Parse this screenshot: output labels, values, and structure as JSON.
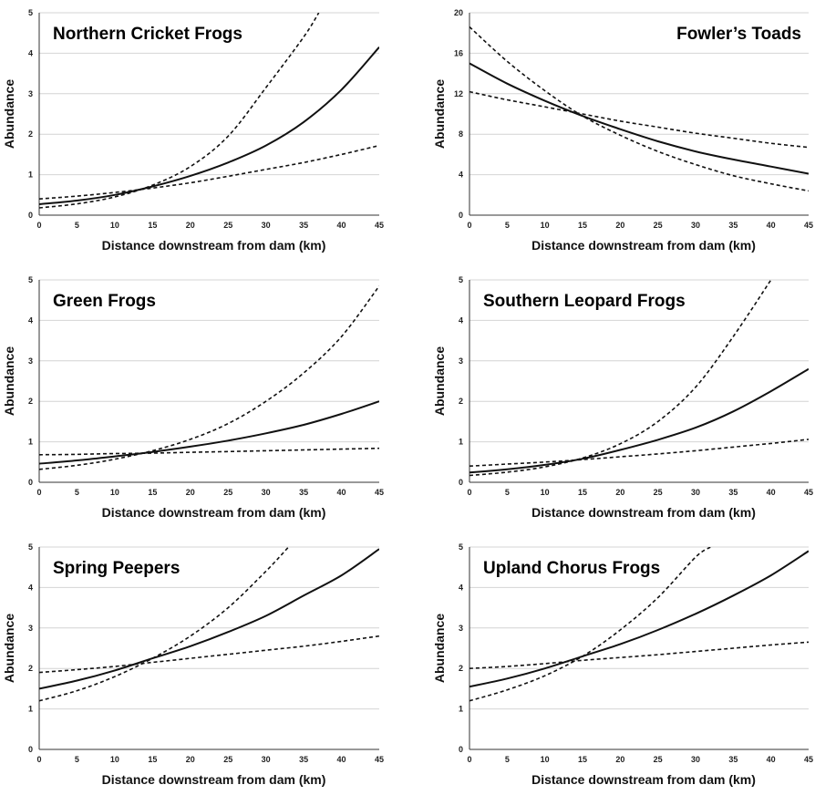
{
  "chart_data": [
    {
      "type": "line",
      "title": "Northern Cricket Frogs",
      "xlabel": "Distance downstream from dam (km)",
      "ylabel": "Abundance",
      "xlim": [
        0,
        45
      ],
      "ylim": [
        0,
        5
      ],
      "xticks": [
        "0",
        "5",
        "10",
        "15",
        "20",
        "25",
        "30",
        "35",
        "40",
        "45"
      ],
      "yticks": [
        "0",
        "1",
        "2",
        "3",
        "4",
        "5"
      ],
      "title_align": "left",
      "grid": true,
      "series": [
        {
          "style": "solid",
          "x": [
            0,
            5,
            10,
            15,
            20,
            25,
            30,
            35,
            40,
            45
          ],
          "y": [
            0.27,
            0.36,
            0.5,
            0.71,
            0.97,
            1.3,
            1.72,
            2.3,
            3.1,
            4.15
          ]
        },
        {
          "style": "dashed",
          "x": [
            0,
            5,
            10,
            15,
            20,
            25,
            30,
            35,
            37
          ],
          "y": [
            0.18,
            0.28,
            0.45,
            0.74,
            1.2,
            1.95,
            3.15,
            4.4,
            5.0
          ]
        },
        {
          "style": "dashed",
          "x": [
            0,
            5,
            10,
            15,
            20,
            25,
            30,
            35,
            40,
            45
          ],
          "y": [
            0.4,
            0.47,
            0.56,
            0.67,
            0.8,
            0.96,
            1.13,
            1.3,
            1.5,
            1.72
          ]
        }
      ]
    },
    {
      "type": "line",
      "title": "Fowler’s Toads",
      "xlabel": "Distance downstream from dam (km)",
      "ylabel": "Abundance",
      "xlim": [
        0,
        45
      ],
      "ylim": [
        0,
        20
      ],
      "xticks": [
        "0",
        "5",
        "10",
        "15",
        "20",
        "25",
        "30",
        "35",
        "40",
        "45"
      ],
      "yticks": [
        "0",
        "4",
        "8",
        "12",
        "16",
        "20"
      ],
      "title_align": "right",
      "grid": true,
      "series": [
        {
          "style": "solid",
          "x": [
            0,
            5,
            10,
            15,
            20,
            25,
            30,
            35,
            40,
            45
          ],
          "y": [
            15.0,
            13.0,
            11.3,
            9.8,
            8.5,
            7.3,
            6.3,
            5.5,
            4.8,
            4.1
          ]
        },
        {
          "style": "dashed",
          "x": [
            0,
            5,
            10,
            15,
            20,
            25,
            30,
            35,
            40,
            45
          ],
          "y": [
            18.6,
            15.2,
            12.3,
            9.8,
            7.9,
            6.3,
            5.0,
            3.9,
            3.1,
            2.4
          ]
        },
        {
          "style": "dashed",
          "x": [
            0,
            5,
            10,
            15,
            20,
            25,
            30,
            35,
            40,
            45
          ],
          "y": [
            12.2,
            11.4,
            10.7,
            10.0,
            9.3,
            8.7,
            8.1,
            7.6,
            7.1,
            6.7
          ]
        }
      ]
    },
    {
      "type": "line",
      "title": "Green Frogs",
      "xlabel": "Distance downstream from dam (km)",
      "ylabel": "Abundance",
      "xlim": [
        0,
        45
      ],
      "ylim": [
        0,
        5
      ],
      "xticks": [
        "0",
        "5",
        "10",
        "15",
        "20",
        "25",
        "30",
        "35",
        "40",
        "45"
      ],
      "yticks": [
        "0",
        "1",
        "2",
        "3",
        "4",
        "5"
      ],
      "title_align": "left",
      "grid": true,
      "series": [
        {
          "style": "solid",
          "x": [
            0,
            5,
            10,
            15,
            20,
            25,
            30,
            35,
            40,
            45
          ],
          "y": [
            0.46,
            0.54,
            0.64,
            0.75,
            0.88,
            1.03,
            1.21,
            1.42,
            1.69,
            2.0
          ]
        },
        {
          "style": "dashed",
          "x": [
            0,
            5,
            10,
            15,
            20,
            25,
            30,
            35,
            40,
            45
          ],
          "y": [
            0.32,
            0.42,
            0.57,
            0.78,
            1.06,
            1.45,
            2.0,
            2.7,
            3.6,
            4.85
          ]
        },
        {
          "style": "dashed",
          "x": [
            0,
            5,
            10,
            15,
            20,
            25,
            30,
            35,
            40,
            45
          ],
          "y": [
            0.68,
            0.69,
            0.71,
            0.72,
            0.74,
            0.76,
            0.78,
            0.8,
            0.82,
            0.84
          ]
        }
      ]
    },
    {
      "type": "line",
      "title": "Southern Leopard Frogs",
      "xlabel": "Distance downstream from dam (km)",
      "ylabel": "Abundance",
      "xlim": [
        0,
        45
      ],
      "ylim": [
        0,
        5
      ],
      "xticks": [
        "0",
        "5",
        "10",
        "15",
        "20",
        "25",
        "30",
        "35",
        "40",
        "45"
      ],
      "yticks": [
        "0",
        "1",
        "2",
        "3",
        "4",
        "5"
      ],
      "title_align": "left",
      "grid": true,
      "series": [
        {
          "style": "solid",
          "x": [
            0,
            5,
            10,
            15,
            20,
            25,
            30,
            35,
            40,
            45
          ],
          "y": [
            0.24,
            0.32,
            0.43,
            0.58,
            0.8,
            1.05,
            1.35,
            1.75,
            2.25,
            2.8
          ]
        },
        {
          "style": "dashed",
          "x": [
            0,
            5,
            10,
            15,
            20,
            25,
            30,
            35,
            40
          ],
          "y": [
            0.17,
            0.25,
            0.38,
            0.6,
            0.95,
            1.5,
            2.35,
            3.6,
            5.0
          ]
        },
        {
          "style": "dashed",
          "x": [
            0,
            5,
            10,
            15,
            20,
            25,
            30,
            35,
            40,
            45
          ],
          "y": [
            0.4,
            0.45,
            0.5,
            0.56,
            0.63,
            0.7,
            0.78,
            0.87,
            0.96,
            1.06
          ]
        }
      ]
    },
    {
      "type": "line",
      "title": "Spring Peepers",
      "xlabel": "Distance downstream from dam (km)",
      "ylabel": "Abundance",
      "xlim": [
        0,
        45
      ],
      "ylim": [
        0,
        5
      ],
      "xticks": [
        "0",
        "5",
        "10",
        "15",
        "20",
        "25",
        "30",
        "35",
        "40",
        "45"
      ],
      "yticks": [
        "0",
        "1",
        "2",
        "3",
        "4",
        "5"
      ],
      "title_align": "left",
      "grid": true,
      "series": [
        {
          "style": "solid",
          "x": [
            0,
            5,
            10,
            15,
            20,
            25,
            30,
            35,
            40,
            45
          ],
          "y": [
            1.5,
            1.7,
            1.95,
            2.25,
            2.55,
            2.9,
            3.3,
            3.8,
            4.3,
            4.95
          ]
        },
        {
          "style": "dashed",
          "x": [
            0,
            5,
            10,
            15,
            20,
            25,
            30,
            33
          ],
          "y": [
            1.2,
            1.45,
            1.8,
            2.25,
            2.8,
            3.5,
            4.4,
            5.0
          ]
        },
        {
          "style": "dashed",
          "x": [
            0,
            5,
            10,
            15,
            20,
            25,
            30,
            35,
            40,
            45
          ],
          "y": [
            1.9,
            1.97,
            2.05,
            2.15,
            2.25,
            2.35,
            2.45,
            2.55,
            2.67,
            2.8
          ]
        }
      ]
    },
    {
      "type": "line",
      "title": "Upland Chorus Frogs",
      "xlabel": "Distance downstream from dam (km)",
      "ylabel": "Abundance",
      "xlim": [
        0,
        45
      ],
      "ylim": [
        0,
        5
      ],
      "xticks": [
        "0",
        "5",
        "10",
        "15",
        "20",
        "25",
        "30",
        "35",
        "40",
        "45"
      ],
      "yticks": [
        "0",
        "1",
        "2",
        "3",
        "4",
        "5"
      ],
      "title_align": "left",
      "grid": true,
      "series": [
        {
          "style": "solid",
          "x": [
            0,
            5,
            10,
            15,
            20,
            25,
            30,
            35,
            40,
            45
          ],
          "y": [
            1.55,
            1.75,
            2.0,
            2.3,
            2.6,
            2.95,
            3.35,
            3.8,
            4.3,
            4.9
          ]
        },
        {
          "style": "dashed",
          "x": [
            0,
            5,
            10,
            15,
            20,
            25,
            30,
            32
          ],
          "y": [
            1.2,
            1.47,
            1.82,
            2.3,
            2.95,
            3.75,
            4.75,
            5.0
          ]
        },
        {
          "style": "dashed",
          "x": [
            0,
            5,
            10,
            15,
            20,
            25,
            30,
            35,
            40,
            45
          ],
          "y": [
            2.0,
            2.05,
            2.12,
            2.2,
            2.27,
            2.34,
            2.42,
            2.5,
            2.58,
            2.65
          ]
        }
      ]
    }
  ]
}
